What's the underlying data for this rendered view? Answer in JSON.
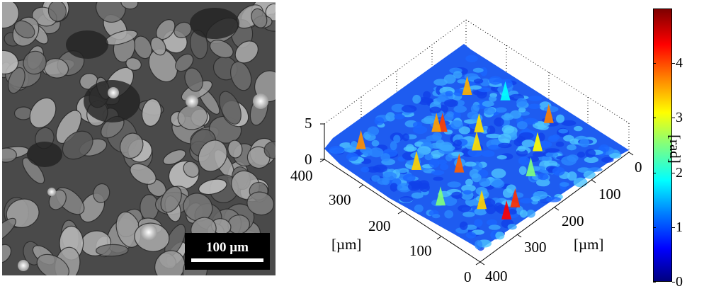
{
  "micrograph": {
    "image": "grayscale-cell-microscopy",
    "scale_bar": {
      "label": "100 µm"
    }
  },
  "surface_plot": {
    "z_axis": {
      "ticks": [
        "0",
        "5"
      ]
    },
    "left_axis": {
      "label": "[µm]",
      "ticks": [
        "400",
        "300",
        "200",
        "100",
        "0"
      ]
    },
    "right_axis": {
      "label": "[µm]",
      "ticks": [
        "0",
        "100",
        "200",
        "300",
        "400"
      ]
    },
    "colormap": "jet"
  },
  "colorbar": {
    "unit": "[rad]",
    "ticks": [
      "0",
      "1",
      "2",
      "3",
      "4"
    ],
    "range": [
      0,
      5
    ],
    "colors": [
      "#00007f",
      "#0000ff",
      "#007fff",
      "#00ffff",
      "#7fff7f",
      "#ffff00",
      "#ff7f00",
      "#ff0000",
      "#7f0000"
    ]
  }
}
